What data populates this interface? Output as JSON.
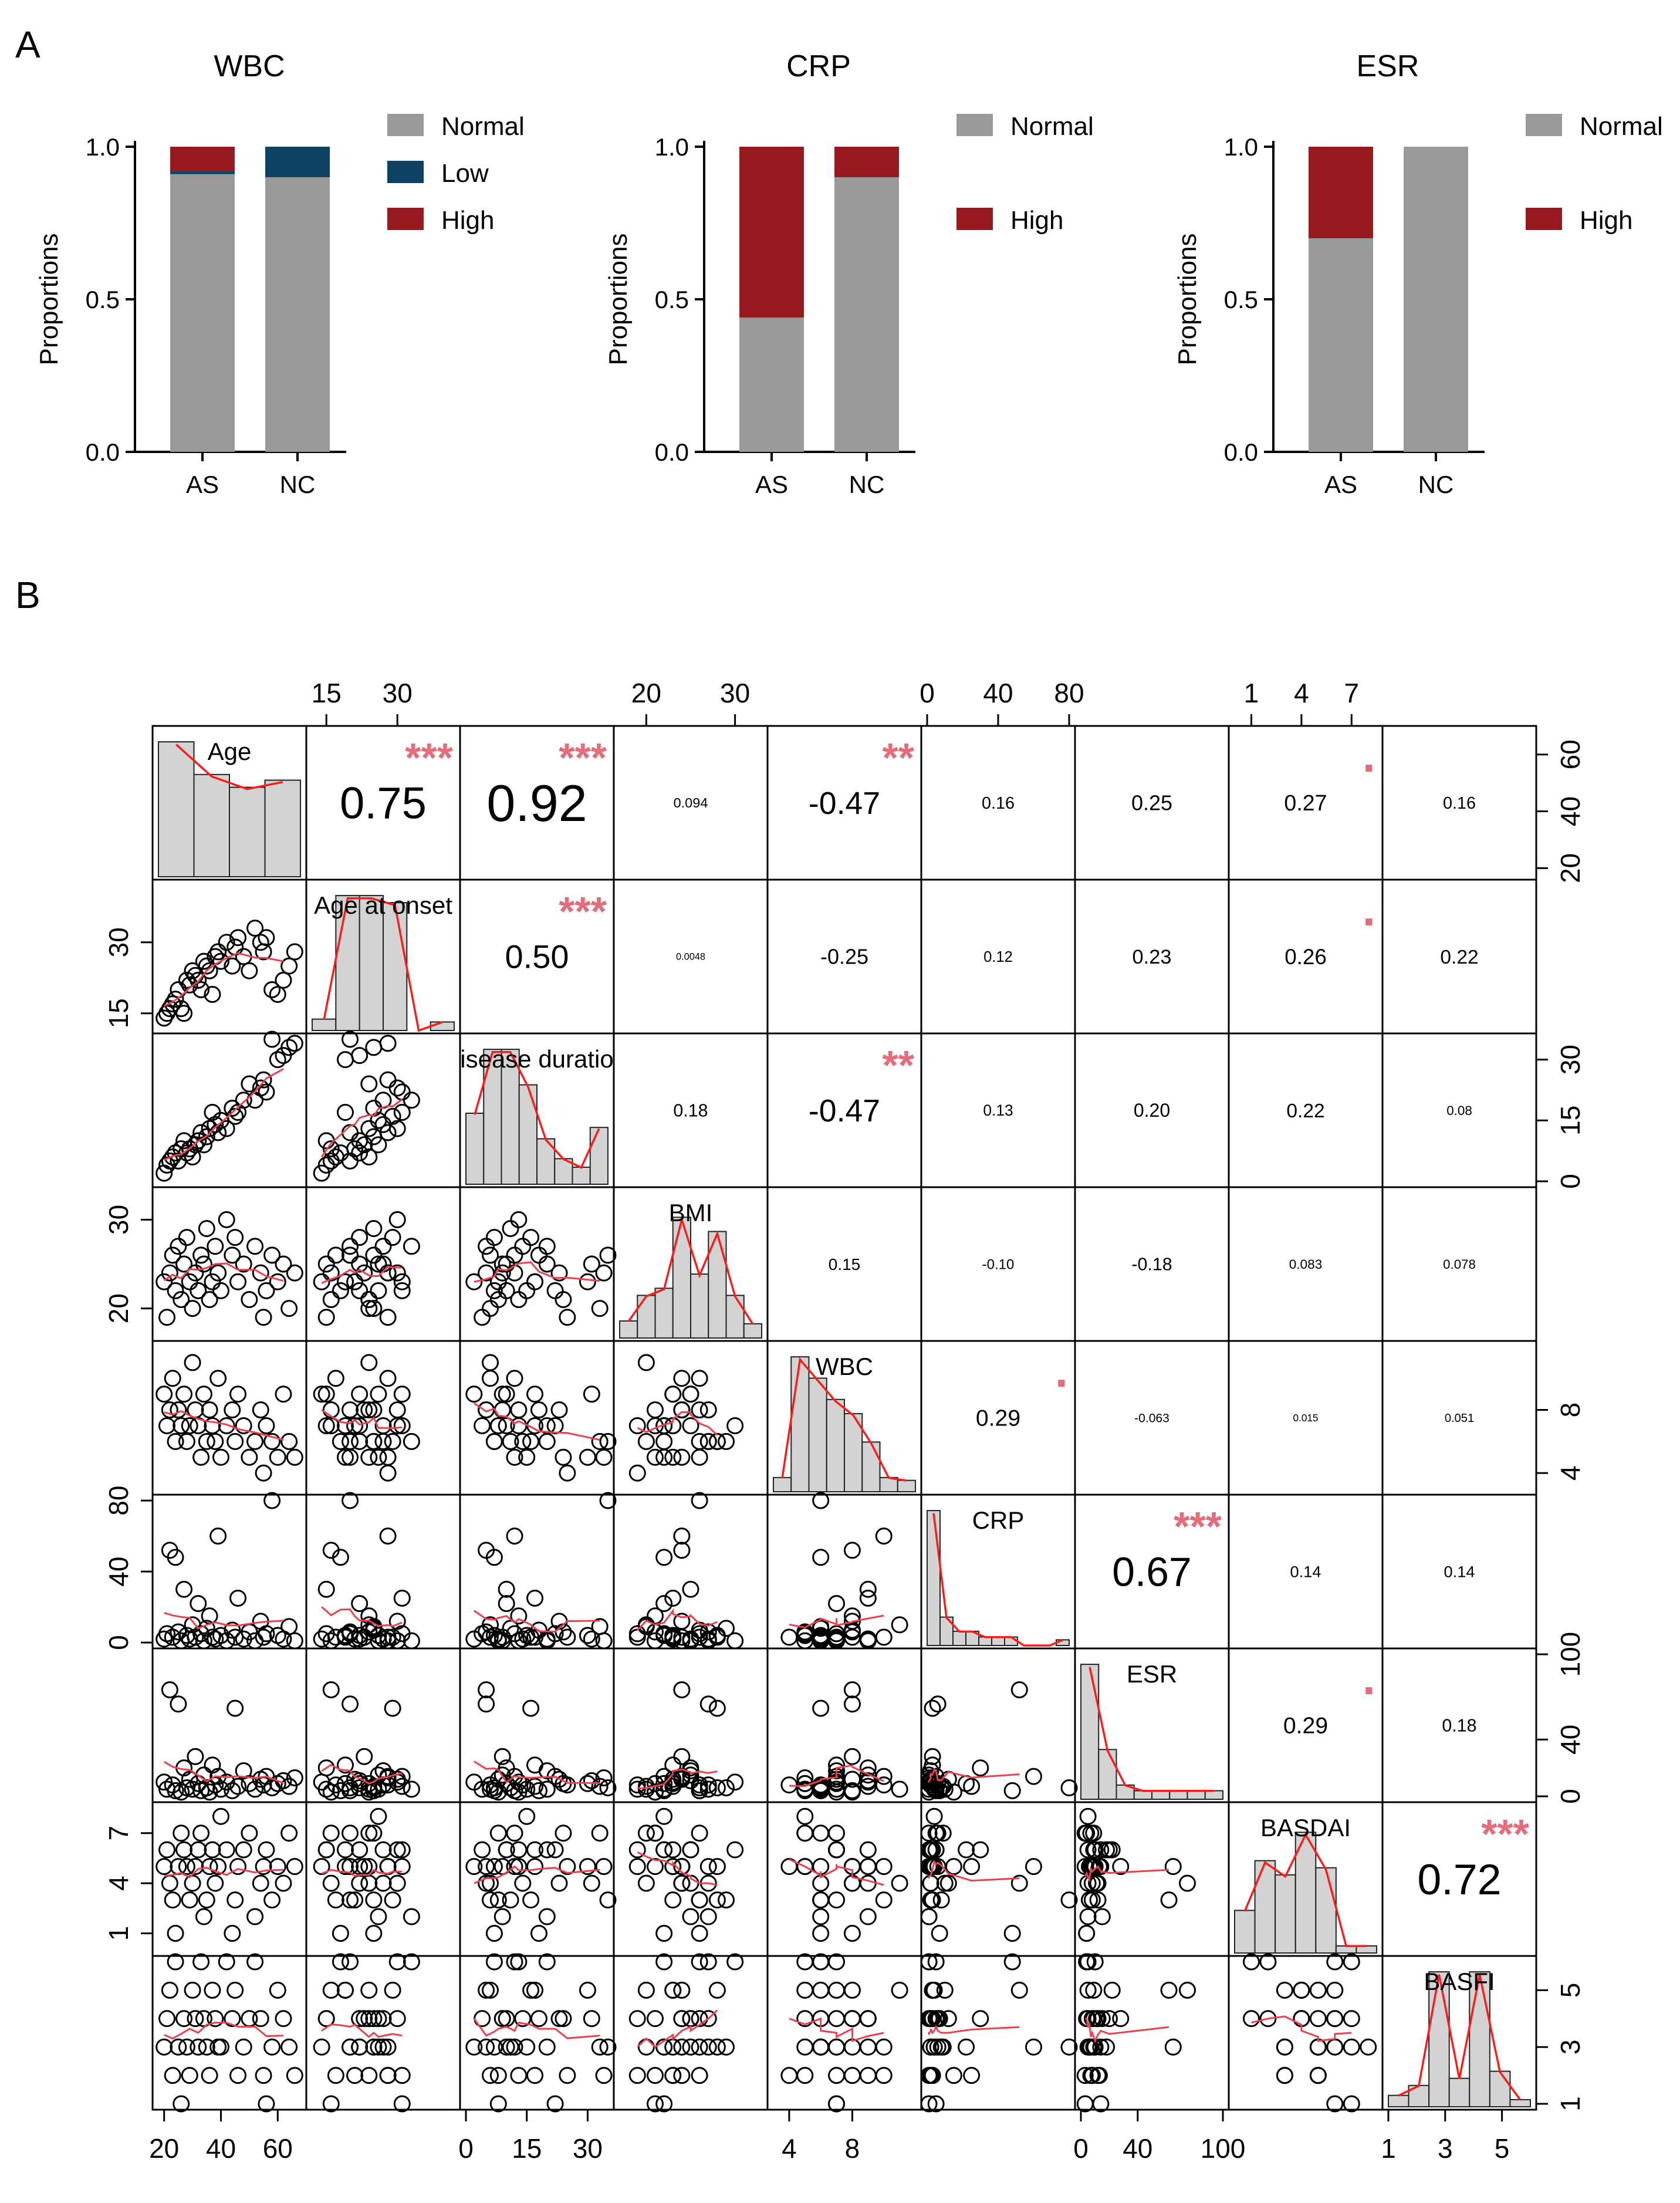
{
  "panel_labels": [
    "A",
    "B"
  ],
  "colors": {
    "normal": "#999999",
    "low": "#0d4262",
    "high": "#961a1e",
    "lowess": "#e8414f",
    "density": "#ff1a1a",
    "star": "#e36d7b",
    "bar_fill": "#d3d3d3"
  },
  "chart_data": [
    {
      "type": "bar",
      "stacked": true,
      "title": "WBC",
      "ylabel": "Proportions",
      "categories": [
        "AS",
        "NC"
      ],
      "ylim": [
        0,
        1.0
      ],
      "yticks": [
        "0.0",
        "0.5",
        "1.0"
      ],
      "legend": [
        "Normal",
        "Low",
        "High"
      ],
      "legend_position": "right",
      "series": [
        {
          "name": "Normal",
          "values": [
            0.91,
            0.9
          ]
        },
        {
          "name": "Low",
          "values": [
            0.01,
            0.1
          ]
        },
        {
          "name": "High",
          "values": [
            0.08,
            0.0
          ]
        }
      ]
    },
    {
      "type": "bar",
      "stacked": true,
      "title": "CRP",
      "ylabel": "Proportions",
      "categories": [
        "AS",
        "NC"
      ],
      "ylim": [
        0,
        1.0
      ],
      "yticks": [
        "0.0",
        "0.5",
        "1.0"
      ],
      "legend": [
        "Normal",
        "",
        "High"
      ],
      "legend_position": "right",
      "series": [
        {
          "name": "Normal",
          "values": [
            0.44,
            0.9
          ]
        },
        {
          "name": "High",
          "values": [
            0.56,
            0.1
          ]
        }
      ]
    },
    {
      "type": "bar",
      "stacked": true,
      "title": "ESR",
      "ylabel": "Proportions",
      "categories": [
        "AS",
        "NC"
      ],
      "ylim": [
        0,
        1.0
      ],
      "yticks": [
        "0.0",
        "0.5",
        "1.0"
      ],
      "legend": [
        "Normal",
        "",
        "High"
      ],
      "legend_position": "right",
      "series": [
        {
          "name": "Normal",
          "values": [
            0.7,
            1.0
          ]
        },
        {
          "name": "High",
          "values": [
            0.3,
            0.0
          ]
        }
      ]
    },
    {
      "type": "scatter",
      "subtype": "correlation-matrix",
      "variables": [
        "Age",
        "Age at onset",
        "Disease duration",
        "BMI",
        "WBC",
        "CRP",
        "ESR",
        "BASDAI",
        "BASFI"
      ],
      "diagonal_labels": [
        "Age",
        "Age at onset",
        "isease duratio",
        "BMI",
        "WBC",
        "CRP",
        "ESR",
        "BASDAI",
        "BASFI"
      ],
      "ranges": [
        [
          18,
          68
        ],
        [
          12,
          42
        ],
        [
          0,
          35
        ],
        [
          17,
          33
        ],
        [
          3,
          12
        ],
        [
          0,
          80
        ],
        [
          0,
          100
        ],
        [
          0,
          8.5
        ],
        [
          1,
          6
        ]
      ],
      "ticks": [
        [
          "20",
          "40",
          "60"
        ],
        [
          "15",
          "30"
        ],
        [
          "0",
          "15",
          "30"
        ],
        [
          "20",
          "30"
        ],
        [
          "4",
          "8"
        ],
        [
          "0",
          "40",
          "80"
        ],
        [
          "0",
          "40",
          "100"
        ],
        [
          "1",
          "4",
          "7"
        ],
        [
          "1",
          "3",
          "5"
        ]
      ],
      "correlations": [
        [
          "Age",
          "Age at onset",
          "0.75",
          "***"
        ],
        [
          "Age",
          "Disease duration",
          "0.92",
          "***"
        ],
        [
          "Age",
          "BMI",
          "0.094",
          ""
        ],
        [
          "Age",
          "WBC",
          "-0.47",
          "**"
        ],
        [
          "Age",
          "CRP",
          "0.16",
          ""
        ],
        [
          "Age",
          "ESR",
          "0.25",
          ""
        ],
        [
          "Age",
          "BASDAI",
          "0.27",
          "."
        ],
        [
          "Age",
          "BASFI",
          "0.16",
          ""
        ],
        [
          "Age at onset",
          "Disease duration",
          "0.50",
          "***"
        ],
        [
          "Age at onset",
          "BMI",
          "0.0048",
          ""
        ],
        [
          "Age at onset",
          "WBC",
          "-0.25",
          ""
        ],
        [
          "Age at onset",
          "CRP",
          "0.12",
          ""
        ],
        [
          "Age at onset",
          "ESR",
          "0.23",
          ""
        ],
        [
          "Age at onset",
          "BASDAI",
          "0.26",
          "."
        ],
        [
          "Age at onset",
          "BASFI",
          "0.22",
          ""
        ],
        [
          "Disease duration",
          "BMI",
          "0.18",
          ""
        ],
        [
          "Disease duration",
          "WBC",
          "-0.47",
          "**"
        ],
        [
          "Disease duration",
          "CRP",
          "0.13",
          ""
        ],
        [
          "Disease duration",
          "ESR",
          "0.20",
          ""
        ],
        [
          "Disease duration",
          "BASDAI",
          "0.22",
          ""
        ],
        [
          "Disease duration",
          "BASFI",
          "0.08",
          ""
        ],
        [
          "BMI",
          "WBC",
          "0.15",
          ""
        ],
        [
          "BMI",
          "CRP",
          "-0.10",
          ""
        ],
        [
          "BMI",
          "ESR",
          "-0.18",
          ""
        ],
        [
          "BMI",
          "BASDAI",
          "0.083",
          ""
        ],
        [
          "BMI",
          "BASFI",
          "0.078",
          ""
        ],
        [
          "WBC",
          "CRP",
          "0.29",
          "."
        ],
        [
          "WBC",
          "ESR",
          "-0.063",
          ""
        ],
        [
          "WBC",
          "BASDAI",
          "0.015",
          ""
        ],
        [
          "WBC",
          "BASFI",
          "0.051",
          ""
        ],
        [
          "CRP",
          "ESR",
          "0.67",
          "***"
        ],
        [
          "CRP",
          "BASDAI",
          "0.14",
          ""
        ],
        [
          "CRP",
          "BASFI",
          "0.14",
          ""
        ],
        [
          "ESR",
          "BASDAI",
          "0.29",
          "."
        ],
        [
          "ESR",
          "BASFI",
          "0.18",
          ""
        ],
        [
          "BASDAI",
          "BASFI",
          "0.72",
          "***"
        ]
      ],
      "histograms": [
        [
          0.95,
          0.72,
          0.63,
          0.68
        ],
        [
          0.08,
          0.95,
          0.95,
          0.9,
          0.0,
          0.06
        ],
        [
          0.5,
          0.95,
          0.95,
          0.7,
          0.32,
          0.18,
          0.12,
          0.4
        ],
        [
          0.12,
          0.3,
          0.35,
          0.85,
          0.45,
          0.75,
          0.3,
          0.1
        ],
        [
          0.1,
          0.95,
          0.8,
          0.65,
          0.55,
          0.35,
          0.1,
          0.08
        ],
        [
          0.95,
          0.2,
          0.1,
          0.1,
          0.06,
          0.06,
          0.06,
          0.0,
          0.0,
          0.0,
          0.04
        ],
        [
          0.95,
          0.35,
          0.1,
          0.06,
          0.06,
          0.06,
          0.06,
          0.06
        ],
        [
          0.3,
          0.65,
          0.55,
          0.85,
          0.6,
          0.05,
          0.05
        ],
        [
          0.08,
          0.15,
          0.95,
          0.2,
          0.95,
          0.25,
          0.05
        ]
      ],
      "sample": {
        "Age": [
          20,
          21,
          22,
          23,
          24,
          25,
          26,
          27,
          28,
          29,
          30,
          31,
          32,
          33,
          34,
          35,
          36,
          37,
          38,
          39,
          40,
          42,
          44,
          45,
          46,
          48,
          50,
          52,
          54,
          55,
          56,
          58,
          60,
          62,
          64,
          66
        ],
        "Age at onset": [
          14,
          15,
          16,
          17,
          18,
          20,
          16,
          15,
          22,
          21,
          24,
          23,
          22,
          20,
          26,
          25,
          24,
          19,
          27,
          28,
          26,
          30,
          25,
          29,
          31,
          27,
          24,
          33,
          30,
          28,
          31,
          20,
          19,
          22,
          25,
          28
        ],
        "Disease duration": [
          2,
          4,
          5,
          6,
          7,
          5,
          8,
          10,
          7,
          8,
          6,
          9,
          10,
          12,
          9,
          11,
          13,
          17,
          14,
          12,
          15,
          13,
          18,
          16,
          17,
          20,
          24,
          20,
          23,
          25,
          22,
          35,
          30,
          31,
          33,
          34
        ],
        "BMI": [
          23,
          19,
          24,
          26,
          22,
          27,
          21,
          25,
          28,
          23,
          20,
          24,
          22,
          26,
          25,
          29,
          21,
          23,
          27,
          24,
          22,
          30,
          26,
          28,
          23,
          25,
          21,
          27,
          24,
          19,
          22,
          26,
          23,
          25,
          20,
          24
        ],
        "WBC": [
          9,
          7,
          8,
          10,
          6,
          8,
          7,
          9,
          6,
          7,
          11,
          8,
          7,
          5,
          9,
          6,
          8,
          7,
          6,
          10,
          5,
          7,
          8,
          6,
          9,
          7,
          5,
          6,
          8,
          4,
          7,
          6,
          5,
          9,
          6,
          5
        ],
        "CRP": [
          2,
          5,
          52,
          3,
          48,
          6,
          1,
          30,
          4,
          2,
          10,
          3,
          22,
          5,
          1,
          8,
          15,
          3,
          2,
          60,
          4,
          1,
          7,
          3,
          25,
          2,
          6,
          1,
          12,
          3,
          5,
          80,
          4,
          2,
          9,
          1
        ],
        "ESR": [
          10,
          5,
          75,
          8,
          4,
          65,
          3,
          20,
          6,
          12,
          5,
          28,
          9,
          4,
          15,
          6,
          3,
          22,
          8,
          14,
          5,
          10,
          4,
          62,
          7,
          18,
          9,
          5,
          12,
          8,
          14,
          6,
          9,
          11,
          7,
          13
        ],
        "BASDAI": [
          5,
          6,
          4,
          3,
          1,
          5,
          7,
          6,
          5,
          3,
          4,
          5,
          6,
          7,
          2,
          3,
          5,
          6,
          4,
          5,
          8,
          6,
          1,
          3,
          5,
          6,
          7,
          2,
          4,
          5,
          6,
          3,
          5,
          4,
          7,
          5
        ],
        "BASFI": [
          3,
          4,
          5,
          2,
          6,
          3,
          1,
          4,
          3,
          2,
          5,
          4,
          3,
          6,
          4,
          3,
          2,
          5,
          4,
          3,
          3,
          6,
          4,
          5,
          2,
          3,
          4,
          6,
          4,
          2,
          1,
          3,
          5,
          4,
          3,
          2
        ]
      }
    }
  ]
}
